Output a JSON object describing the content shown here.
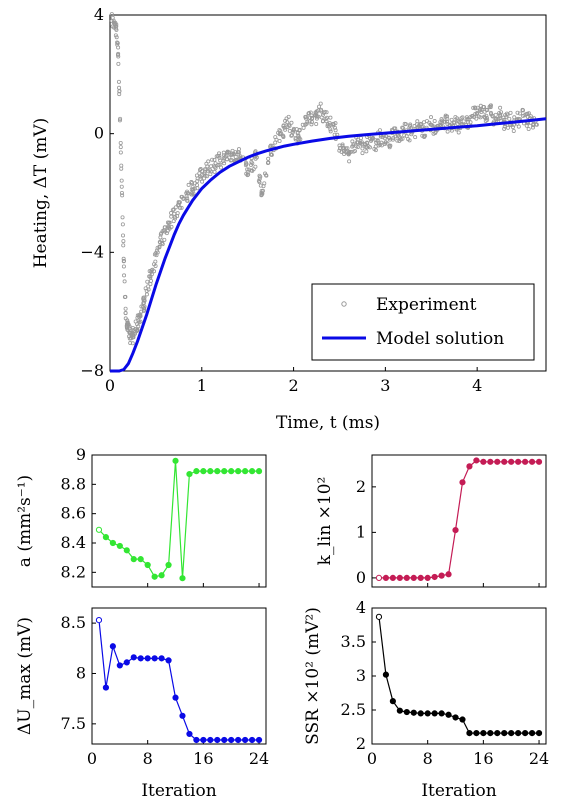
{
  "chart_data": [
    {
      "type": "scatter",
      "xlabel": "Time, t (ms)",
      "ylabel": "Heating, ΔT (mV)",
      "xlim": [
        0,
        4.75
      ],
      "ylim": [
        -8,
        4
      ],
      "xticks": [
        "0",
        "1",
        "2",
        "3",
        "4"
      ],
      "yticks": [
        "−8",
        "−4",
        "0",
        "4"
      ],
      "legend": {
        "placement": "bottom-right",
        "entries": [
          "Experiment",
          "Model solution"
        ]
      },
      "series": [
        {
          "name": "Experiment",
          "kind": "scatter",
          "color": "#999999",
          "x": [
            0.02,
            0.05,
            0.07,
            0.09,
            0.11,
            0.13,
            0.15,
            0.17,
            0.19,
            0.21,
            0.23,
            0.25,
            0.28,
            0.31,
            0.34,
            0.37,
            0.4,
            0.44,
            0.48,
            0.52,
            0.56,
            0.6,
            0.65,
            0.7,
            0.75,
            0.8,
            0.85,
            0.9,
            0.95,
            1.0,
            1.05,
            1.1,
            1.15,
            1.2,
            1.25,
            1.3,
            1.35,
            1.4,
            1.45,
            1.5,
            1.55,
            1.6,
            1.65,
            1.7,
            1.75,
            1.8,
            1.85,
            1.9,
            1.95,
            2.0,
            2.05,
            2.1,
            2.15,
            2.2,
            2.25,
            2.3,
            2.35,
            2.4,
            2.45,
            2.5,
            2.55,
            2.6,
            2.65,
            2.7,
            2.75,
            2.8,
            2.85,
            2.9,
            2.95,
            3.0,
            3.05,
            3.1,
            3.15,
            3.2,
            3.25,
            3.3,
            3.35,
            3.4,
            3.45,
            3.5,
            3.55,
            3.6,
            3.65,
            3.7,
            3.75,
            3.8,
            3.85,
            3.9,
            3.95,
            4.0,
            4.05,
            4.1,
            4.15,
            4.2,
            4.25,
            4.3,
            4.35,
            4.4,
            4.45,
            4.5,
            4.55,
            4.6,
            4.65
          ],
          "y": [
            3.8,
            3.7,
            3.5,
            2.6,
            0.5,
            -2.0,
            -4.3,
            -5.9,
            -6.6,
            -6.7,
            -6.9,
            -6.8,
            -6.6,
            -6.3,
            -6.0,
            -5.7,
            -5.3,
            -4.8,
            -4.4,
            -4.0,
            -3.6,
            -3.3,
            -3.0,
            -2.7,
            -2.4,
            -2.2,
            -2.0,
            -1.8,
            -1.6,
            -1.4,
            -1.2,
            -1.1,
            -1.0,
            -0.9,
            -0.8,
            -0.8,
            -0.7,
            -0.7,
            -0.8,
            -1.3,
            -1.0,
            -0.8,
            -2.0,
            -1.4,
            -0.6,
            -0.3,
            0.0,
            0.2,
            0.3,
            0.1,
            -0.1,
            0.3,
            0.4,
            0.5,
            0.6,
            0.8,
            0.5,
            0.3,
            0.2,
            -0.4,
            -0.6,
            -0.7,
            -0.4,
            -0.2,
            -0.5,
            -0.3,
            -0.2,
            -0.3,
            -0.1,
            -0.3,
            -0.2,
            0.0,
            -0.1,
            0.1,
            0.0,
            0.1,
            0.2,
            0.1,
            0.2,
            0.3,
            0.2,
            0.3,
            0.4,
            0.3,
            0.4,
            0.2,
            0.3,
            0.4,
            0.6,
            0.7,
            0.8,
            0.6,
            0.7,
            0.5,
            0.6,
            0.4,
            0.5,
            0.3,
            0.5,
            0.6,
            0.4,
            0.5,
            0.3
          ]
        },
        {
          "name": "Model solution",
          "kind": "line",
          "color": "#0a0ae6",
          "x": [
            0,
            0.1,
            0.15,
            0.2,
            0.25,
            0.3,
            0.35,
            0.4,
            0.45,
            0.5,
            0.55,
            0.6,
            0.65,
            0.7,
            0.75,
            0.8,
            0.85,
            0.9,
            0.95,
            1.0,
            1.1,
            1.2,
            1.3,
            1.4,
            1.5,
            1.6,
            1.7,
            1.8,
            1.9,
            2.0,
            2.2,
            2.4,
            2.6,
            2.8,
            3.0,
            3.2,
            3.4,
            3.6,
            3.8,
            4.0,
            4.2,
            4.4,
            4.6,
            4.75
          ],
          "y": [
            -8.0,
            -8.0,
            -7.95,
            -7.75,
            -7.4,
            -7.0,
            -6.55,
            -6.1,
            -5.6,
            -5.1,
            -4.65,
            -4.2,
            -3.8,
            -3.4,
            -3.05,
            -2.75,
            -2.5,
            -2.25,
            -2.05,
            -1.85,
            -1.55,
            -1.3,
            -1.1,
            -0.95,
            -0.8,
            -0.68,
            -0.58,
            -0.5,
            -0.42,
            -0.36,
            -0.25,
            -0.16,
            -0.09,
            -0.03,
            0.02,
            0.07,
            0.12,
            0.17,
            0.22,
            0.27,
            0.33,
            0.39,
            0.45,
            0.5
          ]
        }
      ]
    },
    {
      "type": "line",
      "xlabel": "",
      "ylabel": "a (mm²s⁻¹)",
      "xlim": [
        0,
        25
      ],
      "ylim": [
        8.1,
        9.0
      ],
      "yticks": [
        "9",
        "8.8",
        "8.6",
        "8.4",
        "8.2"
      ],
      "series": [
        {
          "color": "#33e633",
          "x": [
            1,
            2,
            3,
            4,
            5,
            6,
            7,
            8,
            9,
            10,
            11,
            12,
            13,
            14,
            15,
            16,
            17,
            18,
            19,
            20,
            21,
            22,
            23,
            24
          ],
          "y": [
            8.49,
            8.44,
            8.4,
            8.38,
            8.35,
            8.29,
            8.29,
            8.25,
            8.17,
            8.18,
            8.25,
            8.96,
            8.16,
            8.87,
            8.89,
            8.89,
            8.89,
            8.89,
            8.89,
            8.89,
            8.89,
            8.89,
            8.89,
            8.89
          ]
        }
      ]
    },
    {
      "type": "line",
      "xlabel": "",
      "ylabel": "k_lin ×10²",
      "xlim": [
        0,
        25
      ],
      "ylim": [
        -0.2,
        2.7
      ],
      "yticks": [
        "2",
        "1",
        "0"
      ],
      "series": [
        {
          "color": "#c41c55",
          "x": [
            1,
            2,
            3,
            4,
            5,
            6,
            7,
            8,
            9,
            10,
            11,
            12,
            13,
            14,
            15,
            16,
            17,
            18,
            19,
            20,
            21,
            22,
            23,
            24
          ],
          "y": [
            0.0,
            0.0,
            0.0,
            0.0,
            0.0,
            0.0,
            0.0,
            0.0,
            0.02,
            0.05,
            0.08,
            1.05,
            2.1,
            2.45,
            2.58,
            2.55,
            2.55,
            2.55,
            2.55,
            2.55,
            2.55,
            2.55,
            2.55,
            2.55
          ]
        }
      ]
    },
    {
      "type": "line",
      "xlabel": "Iteration",
      "ylabel": "ΔU_max (mV)",
      "xlim": [
        0,
        25
      ],
      "ylim": [
        7.3,
        8.65
      ],
      "xticks": [
        "0",
        "8",
        "16",
        "24"
      ],
      "yticks": [
        "8.5",
        "8",
        "7.5"
      ],
      "series": [
        {
          "color": "#0a0ae6",
          "x": [
            1,
            2,
            3,
            4,
            5,
            6,
            7,
            8,
            9,
            10,
            11,
            12,
            13,
            14,
            15,
            16,
            17,
            18,
            19,
            20,
            21,
            22,
            23,
            24
          ],
          "y": [
            8.53,
            7.86,
            8.27,
            8.08,
            8.11,
            8.16,
            8.15,
            8.15,
            8.15,
            8.15,
            8.13,
            7.76,
            7.58,
            7.4,
            7.34,
            7.34,
            7.34,
            7.34,
            7.34,
            7.34,
            7.34,
            7.34,
            7.34,
            7.34
          ]
        }
      ]
    },
    {
      "type": "line",
      "xlabel": "Iteration",
      "ylabel": "SSR ×10² (mV²)",
      "xlim": [
        0,
        25
      ],
      "ylim": [
        2,
        4
      ],
      "xticks": [
        "0",
        "8",
        "16",
        "24"
      ],
      "yticks": [
        "4",
        "3.5",
        "3",
        "2.5",
        "2"
      ],
      "series": [
        {
          "color": "#000000",
          "x": [
            1,
            2,
            3,
            4,
            5,
            6,
            7,
            8,
            9,
            10,
            11,
            12,
            13,
            14,
            15,
            16,
            17,
            18,
            19,
            20,
            21,
            22,
            23,
            24
          ],
          "y": [
            3.87,
            3.02,
            2.63,
            2.49,
            2.47,
            2.46,
            2.45,
            2.45,
            2.45,
            2.45,
            2.43,
            2.39,
            2.36,
            2.16,
            2.16,
            2.16,
            2.16,
            2.16,
            2.16,
            2.16,
            2.16,
            2.16,
            2.16,
            2.16
          ]
        }
      ]
    }
  ]
}
